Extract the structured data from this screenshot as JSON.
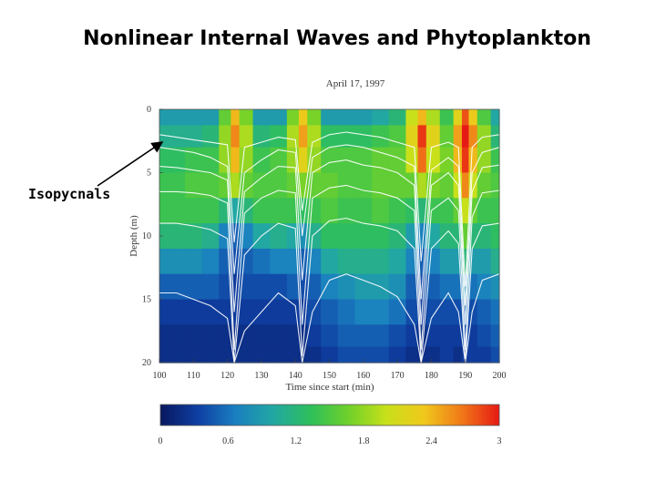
{
  "slide": {
    "title": "Nonlinear Internal Waves and Phytoplankton",
    "annotation": "Isopycnals"
  },
  "chart_data": {
    "type": "heatmap",
    "subtitle": "April 17, 1997",
    "xlabel": "Time since start (min)",
    "ylabel": "Depth (m)",
    "xlim": [
      100,
      200
    ],
    "ylim": [
      0,
      20
    ],
    "x_ticks": [
      "100",
      "110",
      "120",
      "130",
      "140",
      "150",
      "160",
      "170",
      "180",
      "190",
      "200"
    ],
    "y_ticks": [
      "0",
      "5",
      "10",
      "15",
      "20"
    ],
    "colorbar": {
      "range": [
        0,
        3
      ],
      "ticks": [
        "0",
        "0.6",
        "1.2",
        "1.8",
        "2.4",
        "3"
      ],
      "colors": [
        "#08175e",
        "#0f3fa3",
        "#1a7fc0",
        "#22a7a3",
        "#2fbf5a",
        "#6fd02a",
        "#c8e01a",
        "#f0c81c",
        "#f07818",
        "#e61a14"
      ]
    },
    "x": [
      100,
      105,
      110,
      115,
      120,
      122,
      125,
      130,
      135,
      140,
      142,
      145,
      150,
      155,
      160,
      165,
      170,
      175,
      177,
      180,
      185,
      188,
      190,
      192,
      195,
      200
    ],
    "depths": [
      0.5,
      2,
      4,
      6,
      8,
      10,
      12,
      14,
      16,
      18,
      19.5
    ],
    "values": [
      [
        0.9,
        0.9,
        0.9,
        0.9,
        1.6,
        2.4,
        1.7,
        0.9,
        0.9,
        1.7,
        2.3,
        1.7,
        0.9,
        0.9,
        0.9,
        1.0,
        1.2,
        2.0,
        2.4,
        1.9,
        1.4,
        2.2,
        2.8,
        2.3,
        1.5,
        1.0
      ],
      [
        1.1,
        1.1,
        1.1,
        1.2,
        1.8,
        2.6,
        1.9,
        1.2,
        1.3,
        1.9,
        2.5,
        1.9,
        1.3,
        1.3,
        1.3,
        1.4,
        1.5,
        2.2,
        2.9,
        2.2,
        1.6,
        2.5,
        3.0,
        2.6,
        1.8,
        1.2
      ],
      [
        1.3,
        1.3,
        1.4,
        1.4,
        1.8,
        2.4,
        1.8,
        1.4,
        1.5,
        1.8,
        2.2,
        1.8,
        1.5,
        1.5,
        1.5,
        1.6,
        1.6,
        2.0,
        2.7,
        2.0,
        1.7,
        2.4,
        2.9,
        2.4,
        1.8,
        1.4
      ],
      [
        1.4,
        1.4,
        1.5,
        1.5,
        1.6,
        1.9,
        1.6,
        1.5,
        1.5,
        1.6,
        1.7,
        1.6,
        1.6,
        1.5,
        1.5,
        1.6,
        1.6,
        1.6,
        1.9,
        1.7,
        1.6,
        2.0,
        2.6,
        2.0,
        1.6,
        1.5
      ],
      [
        1.4,
        1.4,
        1.4,
        1.4,
        1.2,
        1.0,
        1.2,
        1.4,
        1.4,
        1.4,
        1.3,
        1.4,
        1.5,
        1.4,
        1.4,
        1.5,
        1.4,
        1.3,
        1.2,
        1.4,
        1.4,
        1.6,
        2.0,
        1.6,
        1.4,
        1.4
      ],
      [
        1.2,
        1.2,
        1.2,
        1.1,
        0.7,
        0.5,
        0.7,
        1.0,
        1.1,
        1.0,
        0.8,
        1.1,
        1.3,
        1.3,
        1.3,
        1.3,
        1.2,
        0.9,
        0.7,
        1.0,
        1.2,
        1.2,
        1.6,
        1.2,
        1.2,
        1.3
      ],
      [
        0.8,
        0.8,
        0.8,
        0.7,
        0.5,
        0.4,
        0.5,
        0.6,
        0.7,
        0.7,
        0.5,
        0.7,
        1.0,
        1.1,
        1.1,
        1.1,
        1.0,
        0.7,
        0.5,
        0.7,
        0.9,
        0.9,
        1.2,
        0.9,
        0.9,
        1.1
      ],
      [
        0.5,
        0.5,
        0.5,
        0.5,
        0.4,
        0.3,
        0.4,
        0.4,
        0.4,
        0.5,
        0.4,
        0.5,
        0.7,
        0.8,
        0.9,
        0.9,
        0.8,
        0.5,
        0.4,
        0.5,
        0.6,
        0.6,
        0.8,
        0.6,
        0.7,
        0.8
      ],
      [
        0.3,
        0.3,
        0.3,
        0.3,
        0.3,
        0.3,
        0.3,
        0.3,
        0.3,
        0.3,
        0.3,
        0.4,
        0.5,
        0.6,
        0.7,
        0.7,
        0.6,
        0.4,
        0.3,
        0.4,
        0.4,
        0.4,
        0.5,
        0.4,
        0.5,
        0.6
      ],
      [
        0.2,
        0.2,
        0.2,
        0.2,
        0.2,
        0.2,
        0.2,
        0.2,
        0.2,
        0.2,
        0.2,
        0.3,
        0.4,
        0.5,
        0.5,
        0.5,
        0.4,
        0.3,
        0.2,
        0.3,
        0.3,
        0.3,
        0.4,
        0.3,
        0.4,
        0.5
      ],
      [
        0.2,
        0.2,
        0.2,
        0.2,
        0.2,
        0.2,
        0.2,
        0.2,
        0.2,
        0.2,
        0.2,
        0.2,
        0.3,
        0.4,
        0.4,
        0.4,
        0.3,
        0.2,
        0.2,
        0.2,
        0.3,
        0.2,
        0.3,
        0.3,
        0.3,
        0.4
      ]
    ],
    "isopycnals": [
      {
        "depths": [
          2.0,
          2.2,
          2.4,
          2.6,
          2.8,
          10.5,
          3.0,
          2.6,
          2.2,
          2.4,
          8.0,
          2.6,
          2.0,
          1.8,
          2.0,
          2.2,
          2.6,
          3.0,
          12.0,
          3.0,
          2.6,
          3.0,
          14.0,
          3.0,
          2.2,
          2.0
        ]
      },
      {
        "depths": [
          3.0,
          3.2,
          3.4,
          3.8,
          4.5,
          13.0,
          5.0,
          4.0,
          3.2,
          3.4,
          10.0,
          3.8,
          3.0,
          2.8,
          3.0,
          3.4,
          3.8,
          4.5,
          15.0,
          4.8,
          3.8,
          4.5,
          15.5,
          5.0,
          3.4,
          3.0
        ]
      },
      {
        "depths": [
          4.5,
          4.6,
          4.8,
          5.0,
          5.6,
          16.0,
          6.5,
          5.4,
          4.5,
          4.6,
          13.5,
          5.0,
          4.2,
          4.0,
          4.4,
          4.6,
          5.0,
          6.0,
          17.0,
          6.0,
          5.0,
          6.0,
          17.0,
          6.5,
          4.6,
          4.4
        ]
      },
      {
        "depths": [
          6.5,
          6.5,
          6.6,
          6.8,
          7.4,
          19.0,
          8.2,
          7.0,
          6.4,
          6.6,
          17.0,
          7.0,
          6.2,
          6.0,
          6.4,
          6.6,
          7.0,
          8.0,
          19.0,
          8.0,
          7.0,
          8.0,
          19.0,
          8.5,
          6.6,
          6.4
        ]
      },
      {
        "depths": [
          9.0,
          9.0,
          9.2,
          9.5,
          10.2,
          20.0,
          11.5,
          10.0,
          9.0,
          9.4,
          19.5,
          10.0,
          8.8,
          8.6,
          9.0,
          9.2,
          9.6,
          11.0,
          20.0,
          11.0,
          9.6,
          10.6,
          20.0,
          11.0,
          9.2,
          9.0
        ]
      },
      {
        "depths": [
          14.5,
          14.5,
          15.0,
          15.5,
          16.5,
          20.0,
          17.5,
          16.0,
          14.5,
          15.5,
          20.0,
          16.0,
          13.5,
          13.0,
          13.5,
          14.0,
          14.8,
          17.0,
          20.0,
          16.5,
          14.5,
          16.0,
          20.0,
          16.0,
          13.5,
          13.0
        ]
      }
    ]
  }
}
